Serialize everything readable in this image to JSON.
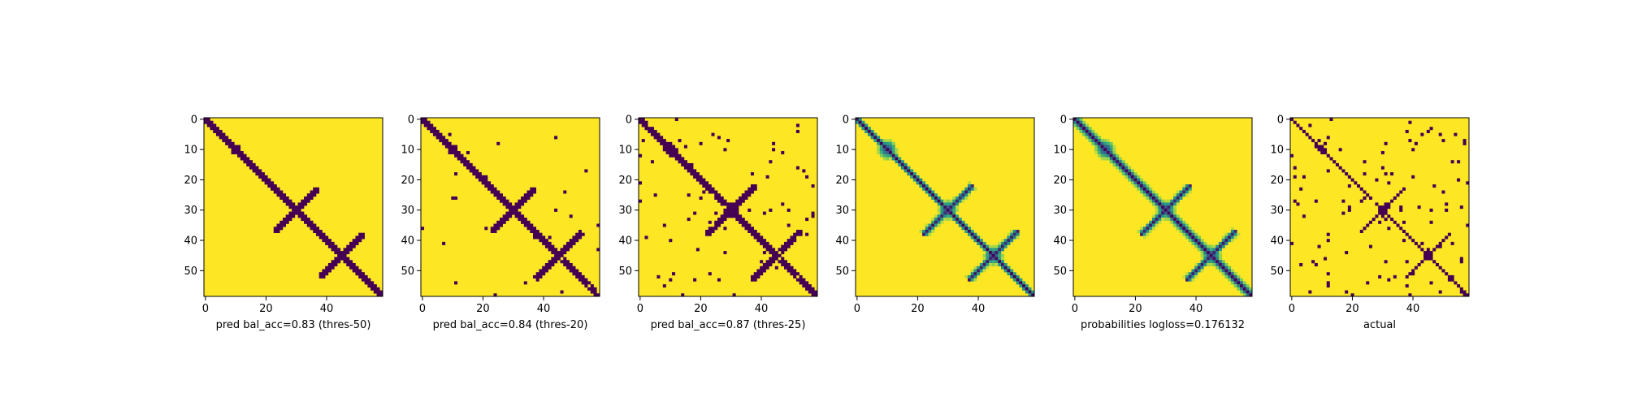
{
  "figure": {
    "colors": {
      "background": "#ffffff",
      "low": "#440154",
      "high": "#fde725",
      "colormap": "viridis"
    }
  },
  "chart_data": [
    {
      "type": "heatmap",
      "xlabel": "pred bal_acc=0.83 (thres-50)",
      "kind": "binary",
      "grid_size": 59,
      "x_ticks": [
        0,
        20,
        40
      ],
      "y_ticks": [
        0,
        10,
        20,
        30,
        40,
        50
      ],
      "xlim": [
        0,
        58
      ],
      "ylim": [
        58,
        0
      ],
      "diagonal_band_halfwidth": 1.6,
      "blobs": [
        [
          10,
          10,
          3
        ],
        [
          30,
          30,
          3
        ],
        [
          45,
          45,
          2.5
        ]
      ],
      "arms": [
        [
          30,
          30,
          10,
          3
        ],
        [
          45,
          45,
          10,
          3
        ]
      ],
      "noise": 0.0
    },
    {
      "type": "heatmap",
      "xlabel": "pred bal_acc=0.84 (thres-20)",
      "kind": "binary",
      "grid_size": 59,
      "x_ticks": [
        0,
        20,
        40
      ],
      "y_ticks": [
        0,
        10,
        20,
        30,
        40,
        50
      ],
      "xlim": [
        0,
        58
      ],
      "ylim": [
        58,
        0
      ],
      "diagonal_band_halfwidth": 1.8,
      "blobs": [
        [
          10,
          10,
          3
        ],
        [
          30,
          30,
          3
        ],
        [
          45,
          45,
          2.5
        ]
      ],
      "arms": [
        [
          30,
          30,
          10,
          3
        ],
        [
          45,
          45,
          11,
          3
        ]
      ],
      "noise": 0.02
    },
    {
      "type": "heatmap",
      "xlabel": "pred bal_acc=0.87 (thres-25)",
      "kind": "binary",
      "grid_size": 59,
      "x_ticks": [
        0,
        20,
        40
      ],
      "y_ticks": [
        0,
        10,
        20,
        30,
        40,
        50
      ],
      "xlim": [
        0,
        58
      ],
      "ylim": [
        58,
        0
      ],
      "diagonal_band_halfwidth": 2.2,
      "blobs": [
        [
          10,
          10,
          3.5
        ],
        [
          30,
          30,
          3.5
        ],
        [
          45,
          45,
          3
        ]
      ],
      "arms": [
        [
          30,
          30,
          12,
          3.5
        ],
        [
          45,
          45,
          12,
          3.5
        ]
      ],
      "noise": 0.04
    },
    {
      "type": "heatmap",
      "xlabel": "",
      "kind": "continuous",
      "grid_size": 59,
      "x_ticks": [
        0,
        20,
        40
      ],
      "y_ticks": [
        0,
        10,
        20,
        30,
        40,
        50
      ],
      "xlim": [
        0,
        58
      ],
      "ylim": [
        58,
        0
      ],
      "diagonal_band_halfwidth": 1.4,
      "blobs": [
        [
          10,
          10,
          3
        ],
        [
          30,
          30,
          3
        ],
        [
          45,
          45,
          3
        ]
      ],
      "arms": [
        [
          30,
          30,
          12,
          3
        ],
        [
          45,
          45,
          12,
          3
        ]
      ],
      "noise": 0.1
    },
    {
      "type": "heatmap",
      "xlabel": "probabilities logloss=0.176132",
      "kind": "continuous",
      "grid_size": 59,
      "x_ticks": [
        0,
        20,
        40
      ],
      "y_ticks": [
        0,
        10,
        20,
        30,
        40,
        50
      ],
      "xlim": [
        0,
        58
      ],
      "ylim": [
        58,
        0
      ],
      "diagonal_band_halfwidth": 2.0,
      "blobs": [
        [
          10,
          10,
          3
        ],
        [
          30,
          30,
          3
        ],
        [
          45,
          45,
          3
        ]
      ],
      "arms": [
        [
          30,
          30,
          12,
          3
        ],
        [
          45,
          45,
          12,
          3
        ]
      ],
      "noise": 0.08
    },
    {
      "type": "heatmap",
      "xlabel": "actual",
      "kind": "binary",
      "grid_size": 59,
      "x_ticks": [
        0,
        20,
        40
      ],
      "y_ticks": [
        0,
        10,
        20,
        30,
        40,
        50
      ],
      "xlim": [
        0,
        58
      ],
      "ylim": [
        58,
        0
      ],
      "diagonal_band_halfwidth": 1.3,
      "blobs": [
        [
          10,
          10,
          2
        ],
        [
          30,
          30,
          2
        ],
        [
          45,
          45,
          2
        ]
      ],
      "arms": [
        [
          30,
          30,
          10,
          2
        ],
        [
          45,
          45,
          10,
          2
        ]
      ],
      "noise": 0.06
    }
  ]
}
